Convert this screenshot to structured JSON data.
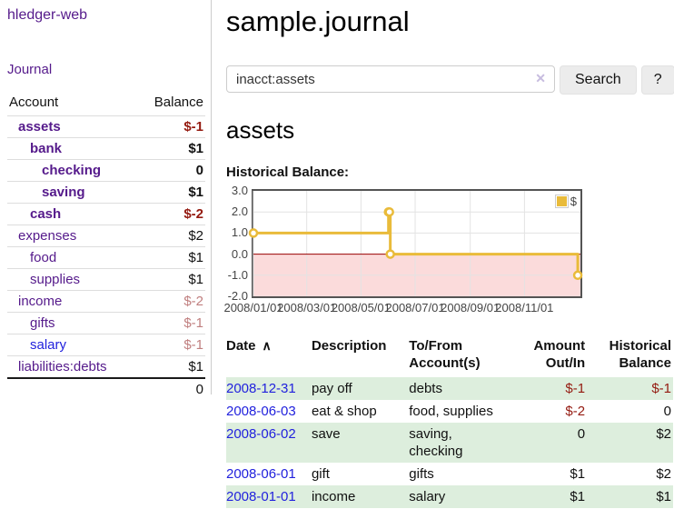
{
  "brand": "hledger-web",
  "theme": {
    "link_purple": "#551a8b",
    "link_blue": "#2222dd",
    "negative_red": "#941a10",
    "negative_muted_red": "#c07f7f",
    "row_shade_green": "#ddeedd"
  },
  "sidebar": {
    "journal_link": "Journal",
    "accounts_header": {
      "account": "Account",
      "balance": "Balance"
    },
    "accounts": [
      {
        "name": "assets",
        "level": 1,
        "balance": "$-1",
        "name_class": "purple bold",
        "value_class": "neg bold"
      },
      {
        "name": "bank",
        "level": 2,
        "balance": "$1",
        "name_class": "purple bold",
        "value_class": "bold"
      },
      {
        "name": "checking",
        "level": 3,
        "balance": "0",
        "name_class": "purple bold",
        "value_class": "bold"
      },
      {
        "name": "saving",
        "level": 3,
        "balance": "$1",
        "name_class": "purple bold",
        "value_class": "bold"
      },
      {
        "name": "cash",
        "level": 2,
        "balance": "$-2",
        "name_class": "purple bold",
        "value_class": "neg bold"
      },
      {
        "name": "expenses",
        "level": 1,
        "balance": "$2",
        "name_class": "purple",
        "value_class": ""
      },
      {
        "name": "food",
        "level": 2,
        "balance": "$1",
        "name_class": "purple",
        "value_class": ""
      },
      {
        "name": "supplies",
        "level": 2,
        "balance": "$1",
        "name_class": "purple",
        "value_class": ""
      },
      {
        "name": "income",
        "level": 1,
        "balance": "$-2",
        "name_class": "purple",
        "value_class": "negmuted"
      },
      {
        "name": "gifts",
        "level": 2,
        "balance": "$-1",
        "name_class": "purple",
        "value_class": "negmuted"
      },
      {
        "name": "salary",
        "level": 2,
        "balance": "$-1",
        "name_class": "blue",
        "value_class": "negmuted"
      },
      {
        "name": "liabilities:debts",
        "level": 1,
        "balance": "$1",
        "name_class": "purple",
        "value_class": ""
      }
    ],
    "total": "0"
  },
  "header": {
    "title": "sample.journal"
  },
  "search": {
    "value": "inacct:assets",
    "clear_icon": "✕",
    "button_label": "Search",
    "help_label": "?"
  },
  "account_page": {
    "heading": "assets",
    "section_label": "Historical Balance:"
  },
  "chart_data": {
    "type": "line",
    "step": true,
    "title": "Historical Balance",
    "x_start": "2008-01-01",
    "x_span_days": 368,
    "xlim": [
      "2008-01-01",
      "2008-12-31"
    ],
    "ylim": [
      -2,
      3
    ],
    "y_ticks": [
      3.0,
      2.0,
      1.0,
      0.0,
      -1.0,
      -2.0
    ],
    "x_ticks": [
      {
        "label": "2008/01/01",
        "date": "2008-01-01"
      },
      {
        "label": "2008/03/01",
        "date": "2008-03-01"
      },
      {
        "label": "2008/05/01",
        "date": "2008-05-01"
      },
      {
        "label": "2008/07/01",
        "date": "2008-07-01"
      },
      {
        "label": "2008/09/01",
        "date": "2008-09-01"
      },
      {
        "label": "2008/11/01",
        "date": "2008-11-01"
      }
    ],
    "series": [
      {
        "name": "$",
        "color": "#e9bb3a",
        "points": [
          {
            "date": "2008-01-01",
            "value": 1
          },
          {
            "date": "2008-06-01",
            "value": 2
          },
          {
            "date": "2008-06-02",
            "value": 2
          },
          {
            "date": "2008-06-03",
            "value": 0
          },
          {
            "date": "2008-12-31",
            "value": -1
          }
        ]
      }
    ],
    "colors": {
      "negative_region": "#fbdbdb",
      "zero_line": "#990000",
      "grid": "#e3e3e3",
      "border": "#545454",
      "tick_text": "#444444"
    },
    "legend": {
      "label": "$",
      "position": "top-right"
    },
    "grid": true
  },
  "register": {
    "columns": [
      {
        "label": "Date",
        "sort_indicator": "∧",
        "align": "left"
      },
      {
        "label": "Description",
        "align": "left"
      },
      {
        "label": "To/From\nAccount(s)",
        "align": "left"
      },
      {
        "label": "Amount\nOut/In",
        "align": "right"
      },
      {
        "label": "Historical\nBalance",
        "align": "right"
      }
    ],
    "rows": [
      {
        "date": "2008-12-31",
        "description": "pay off",
        "accounts": "debts",
        "amount": "$-1",
        "balance": "$-1"
      },
      {
        "date": "2008-06-03",
        "description": "eat & shop",
        "accounts": "food, supplies",
        "amount": "$-2",
        "balance": "0"
      },
      {
        "date": "2008-06-02",
        "description": "save",
        "accounts": "saving,\nchecking",
        "amount": "0",
        "balance": "$2"
      },
      {
        "date": "2008-06-01",
        "description": "gift",
        "accounts": "gifts",
        "amount": "$1",
        "balance": "$2"
      },
      {
        "date": "2008-01-01",
        "description": "income",
        "accounts": "salary",
        "amount": "$1",
        "balance": "$1"
      }
    ]
  }
}
